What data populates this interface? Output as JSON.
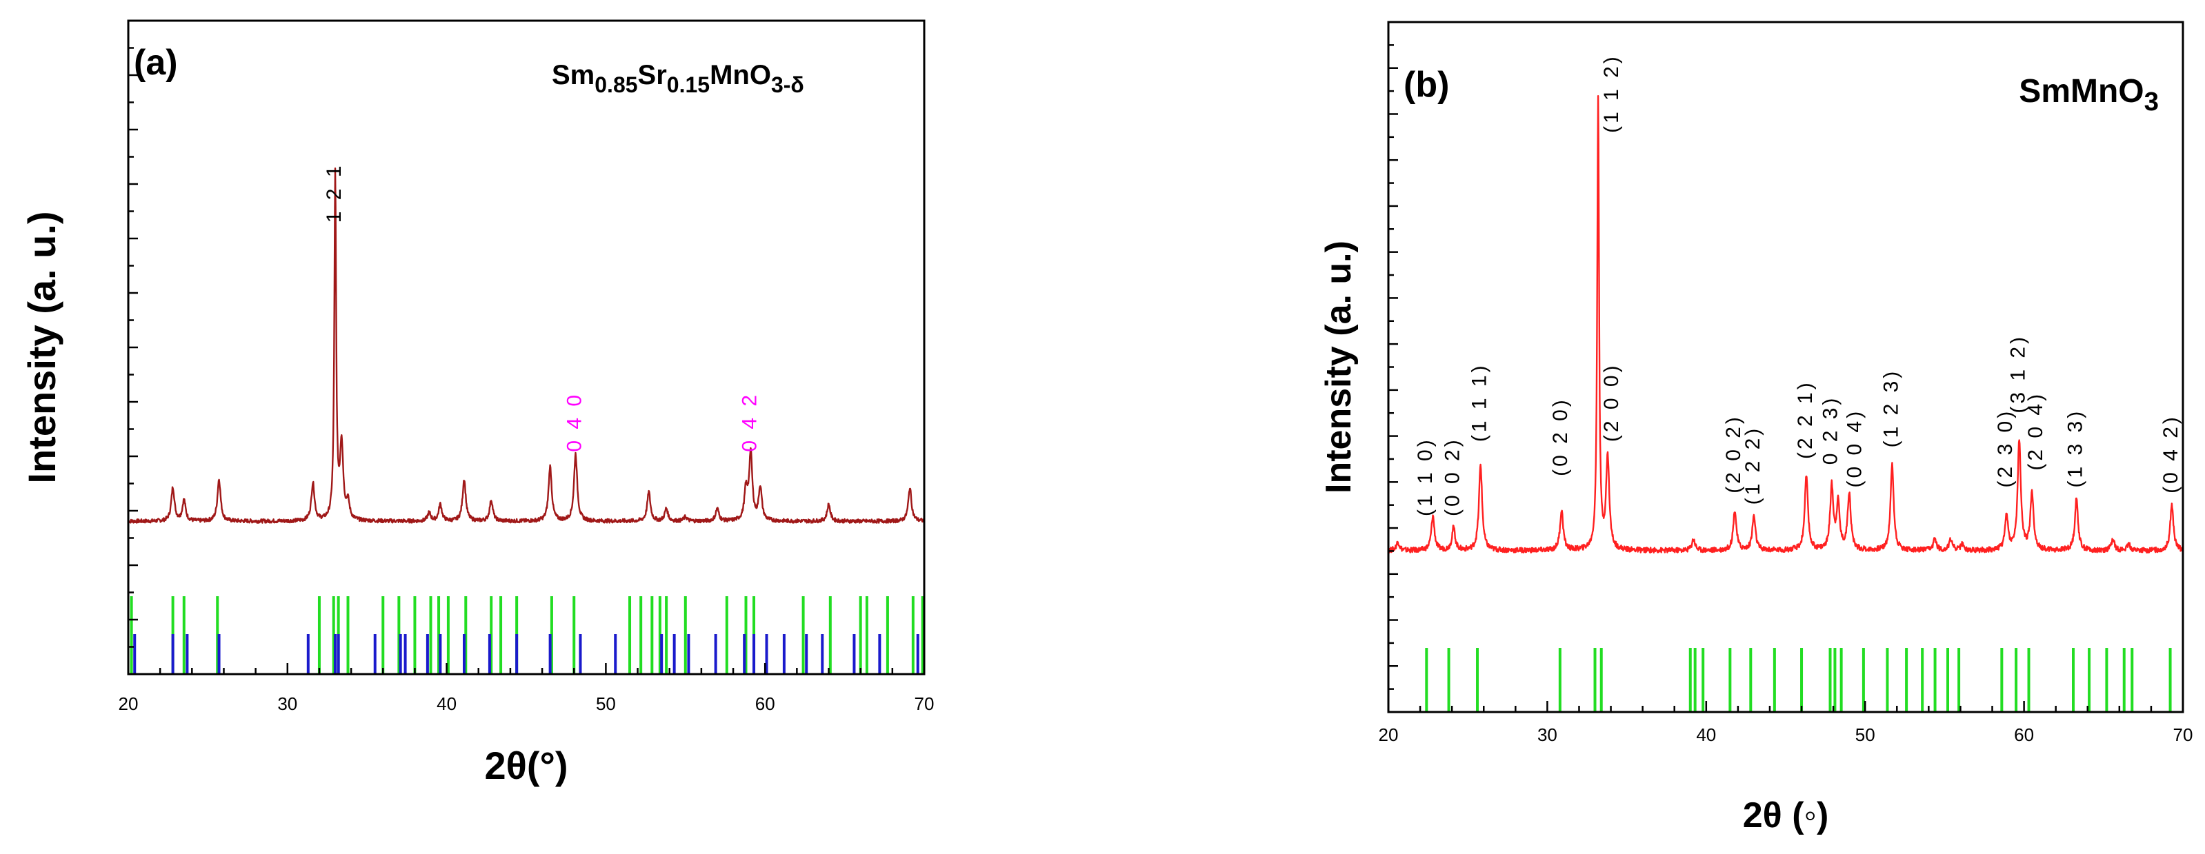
{
  "chart_data": [
    {
      "type": "line",
      "panel_label": "(a)",
      "formula": {
        "el1": "Sm",
        "sub1": "0.85",
        "el2": "Sr",
        "sub2": "0.15",
        "rest": "MnO",
        "sub3": "3-δ"
      },
      "xlabel": "2θ(°)",
      "ylabel": "Intensity (a. u.)",
      "xlim": [
        20,
        70
      ],
      "xticks": [
        "20",
        "30",
        "40",
        "50",
        "60",
        "70"
      ],
      "ylim": [
        0,
        100
      ],
      "baseline": 17,
      "line_color": "#a01818",
      "peaks": [
        {
          "x": 22.8,
          "y": 8
        },
        {
          "x": 23.5,
          "y": 5
        },
        {
          "x": 25.7,
          "y": 10
        },
        {
          "x": 31.6,
          "y": 9
        },
        {
          "x": 33.0,
          "y": 82
        },
        {
          "x": 33.4,
          "y": 18
        },
        {
          "x": 33.8,
          "y": 4
        },
        {
          "x": 38.9,
          "y": 2
        },
        {
          "x": 39.6,
          "y": 4
        },
        {
          "x": 41.1,
          "y": 10
        },
        {
          "x": 42.8,
          "y": 5
        },
        {
          "x": 46.5,
          "y": 13
        },
        {
          "x": 48.1,
          "y": 16
        },
        {
          "x": 52.7,
          "y": 7
        },
        {
          "x": 53.8,
          "y": 3
        },
        {
          "x": 55.0,
          "y": 1
        },
        {
          "x": 57.0,
          "y": 3
        },
        {
          "x": 58.8,
          "y": 7
        },
        {
          "x": 59.1,
          "y": 16
        },
        {
          "x": 59.7,
          "y": 8
        },
        {
          "x": 64.0,
          "y": 4
        },
        {
          "x": 69.1,
          "y": 8
        }
      ],
      "reference_lines": [
        {
          "color": "#22dd22",
          "top": 12,
          "bottom": 0,
          "x": [
            20.2,
            22.8,
            23.5,
            25.6,
            32.0,
            32.9,
            33.2,
            33.8,
            36.0,
            37.0,
            38.0,
            39.0,
            39.5,
            40.1,
            41.2,
            42.8,
            43.4,
            44.4,
            46.6,
            48.0,
            51.5,
            52.2,
            52.9,
            53.4,
            53.8,
            55.0,
            57.6,
            58.8,
            59.3,
            62.4,
            64.1,
            66.0,
            66.4,
            67.7,
            69.3,
            69.9
          ]
        },
        {
          "color": "#1a1acc",
          "top": 6,
          "bottom": 0,
          "x": [
            20.4,
            22.8,
            23.7,
            25.7,
            31.3,
            33.0,
            33.2,
            35.5,
            37.1,
            37.4,
            38.8,
            39.6,
            41.1,
            42.7,
            44.4,
            46.5,
            48.4,
            50.6,
            53.5,
            54.3,
            55.2,
            56.9,
            58.7,
            59.3,
            60.1,
            61.2,
            62.6,
            63.6,
            65.6,
            67.2,
            69.6
          ]
        }
      ],
      "annotations": [
        {
          "text": "1 2 1",
          "x": 33.0,
          "y": 88,
          "color": "#000000"
        },
        {
          "text": "0 4 0",
          "x": 48.1,
          "y": 33.5,
          "color": "#ff00ff"
        },
        {
          "text": "0 4 2",
          "x": 59.1,
          "y": 33.5,
          "color": "#ff00ff"
        }
      ]
    },
    {
      "type": "line",
      "panel_label": "(b)",
      "formula": {
        "main": "SmMnO",
        "sub": "3"
      },
      "xlabel": "2θ (◦)",
      "ylabel": "Intensity (a. u.)",
      "xlim": [
        20,
        70
      ],
      "xticks": [
        "20",
        "30",
        "40",
        "50",
        "60",
        "70"
      ],
      "ylim": [
        0,
        100
      ],
      "baseline": 14,
      "line_color": "#ff2020",
      "peaks": [
        {
          "x": 20.6,
          "y": 1.5
        },
        {
          "x": 22.8,
          "y": 6
        },
        {
          "x": 24.1,
          "y": 4
        },
        {
          "x": 25.8,
          "y": 15
        },
        {
          "x": 30.9,
          "y": 7
        },
        {
          "x": 33.2,
          "y": 79
        },
        {
          "x": 33.8,
          "y": 16
        },
        {
          "x": 39.2,
          "y": 2
        },
        {
          "x": 41.8,
          "y": 7
        },
        {
          "x": 43.0,
          "y": 6
        },
        {
          "x": 46.3,
          "y": 13
        },
        {
          "x": 47.9,
          "y": 11
        },
        {
          "x": 48.3,
          "y": 8
        },
        {
          "x": 49.0,
          "y": 10
        },
        {
          "x": 51.7,
          "y": 15
        },
        {
          "x": 54.4,
          "y": 2
        },
        {
          "x": 55.4,
          "y": 2
        },
        {
          "x": 56.1,
          "y": 1
        },
        {
          "x": 58.9,
          "y": 6
        },
        {
          "x": 59.7,
          "y": 19
        },
        {
          "x": 60.5,
          "y": 10
        },
        {
          "x": 63.3,
          "y": 9
        },
        {
          "x": 65.6,
          "y": 2
        },
        {
          "x": 66.6,
          "y": 1
        },
        {
          "x": 69.3,
          "y": 8
        }
      ],
      "reference_lines": [
        {
          "color": "#22dd22",
          "top": 11,
          "bottom": 0,
          "x": [
            22.4,
            23.8,
            25.6,
            30.8,
            33.0,
            33.4,
            39.0,
            39.3,
            39.8,
            41.5,
            42.8,
            44.3,
            46.0,
            47.8,
            48.1,
            48.5,
            49.9,
            51.4,
            52.6,
            53.6,
            54.4,
            55.2,
            55.9,
            58.6,
            59.5,
            60.3,
            63.1,
            64.1,
            65.2,
            66.3,
            66.8,
            69.2
          ]
        }
      ],
      "annotations": [
        {
          "text": "(1 1 0)",
          "x": 22.4,
          "y": 20
        },
        {
          "text": "(0 0 2)",
          "x": 24.1,
          "y": 20
        },
        {
          "text": "(1 1 1)",
          "x": 25.8,
          "y": 33
        },
        {
          "text": "(0 2 0)",
          "x": 30.9,
          "y": 27
        },
        {
          "text": "(1 1 2)",
          "x": 34.1,
          "y": 87
        },
        {
          "text": "(2 0 0)",
          "x": 34.1,
          "y": 33
        },
        {
          "text": "(2 0 2)",
          "x": 41.8,
          "y": 24
        },
        {
          "text": "(1 2 2)",
          "x": 43.0,
          "y": 22
        },
        {
          "text": "(2 2 1)",
          "x": 46.3,
          "y": 30
        },
        {
          "text": "0 2 3)",
          "x": 47.9,
          "y": 29
        },
        {
          "text": "(0 0 4)",
          "x": 49.4,
          "y": 25
        },
        {
          "text": "(1 2 3)",
          "x": 51.7,
          "y": 32
        },
        {
          "text": "(2 3 0)",
          "x": 58.9,
          "y": 25
        },
        {
          "text": "(3 1 2)",
          "x": 59.7,
          "y": 38
        },
        {
          "text": "(2 0 4)",
          "x": 60.8,
          "y": 28
        },
        {
          "text": "(1 3 3)",
          "x": 63.3,
          "y": 25
        },
        {
          "text": "(0 4 2)",
          "x": 69.3,
          "y": 24
        }
      ]
    }
  ]
}
